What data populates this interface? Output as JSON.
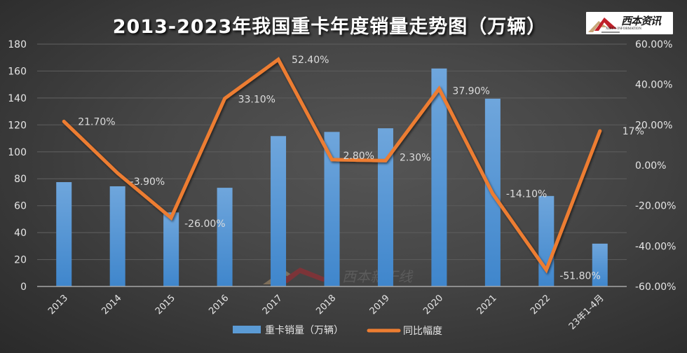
{
  "header": {
    "title": "2013-2023年我国重卡年度销量走势图（万辆）",
    "logo_text": "西本资讯",
    "logo_sub": "XIBEN INFORMATION"
  },
  "colors": {
    "bar": "#5b9bd5",
    "bar_top": "#6fa6dc",
    "bar_bottom": "#3f86cc",
    "line": "#ed7d31",
    "text": "#e6e6e6",
    "gridline": "#5a5a5a",
    "axis": "#a6a6a6"
  },
  "chart_data": {
    "type": "bar+line",
    "title": "2013-2023年我国重卡年度销量走势图（万辆）",
    "categories": [
      "2013",
      "2014",
      "2015",
      "2016",
      "2017",
      "2018",
      "2019",
      "2020",
      "2021",
      "2022",
      "23年1-4月"
    ],
    "series": [
      {
        "name": "重卡销量（万辆）",
        "type": "bar",
        "axis": "left",
        "values": [
          77.5,
          74.4,
          55.0,
          73.3,
          111.7,
          114.8,
          117.5,
          161.9,
          139.5,
          67.2,
          31.8
        ]
      },
      {
        "name": "同比幅度",
        "type": "line",
        "axis": "right",
        "values": [
          21.7,
          -3.9,
          -26.0,
          33.1,
          52.4,
          2.8,
          2.3,
          37.9,
          -14.1,
          -51.8,
          17.0
        ],
        "labels": [
          "21.70%",
          "-3.90%",
          "-26.00%",
          "33.10%",
          "52.40%",
          "2.80%",
          "2.30%",
          "37.90%",
          "-14.10%",
          "-51.80%",
          "17%"
        ]
      }
    ],
    "left_axis": {
      "ylim": [
        0,
        180
      ],
      "ticks": [
        "0",
        "20",
        "40",
        "60",
        "80",
        "100",
        "120",
        "140",
        "160",
        "180"
      ]
    },
    "right_axis": {
      "ylim": [
        -60,
        60
      ],
      "ticks": [
        "-60.00%",
        "-40.00%",
        "-20.00%",
        "0.00%",
        "20.00%",
        "40.00%",
        "60.00%"
      ]
    },
    "xlabel": "",
    "ylabel": "",
    "grid": true,
    "legend_position": "bottom",
    "legend": [
      "重卡销量（万辆）",
      "同比幅度"
    ]
  }
}
